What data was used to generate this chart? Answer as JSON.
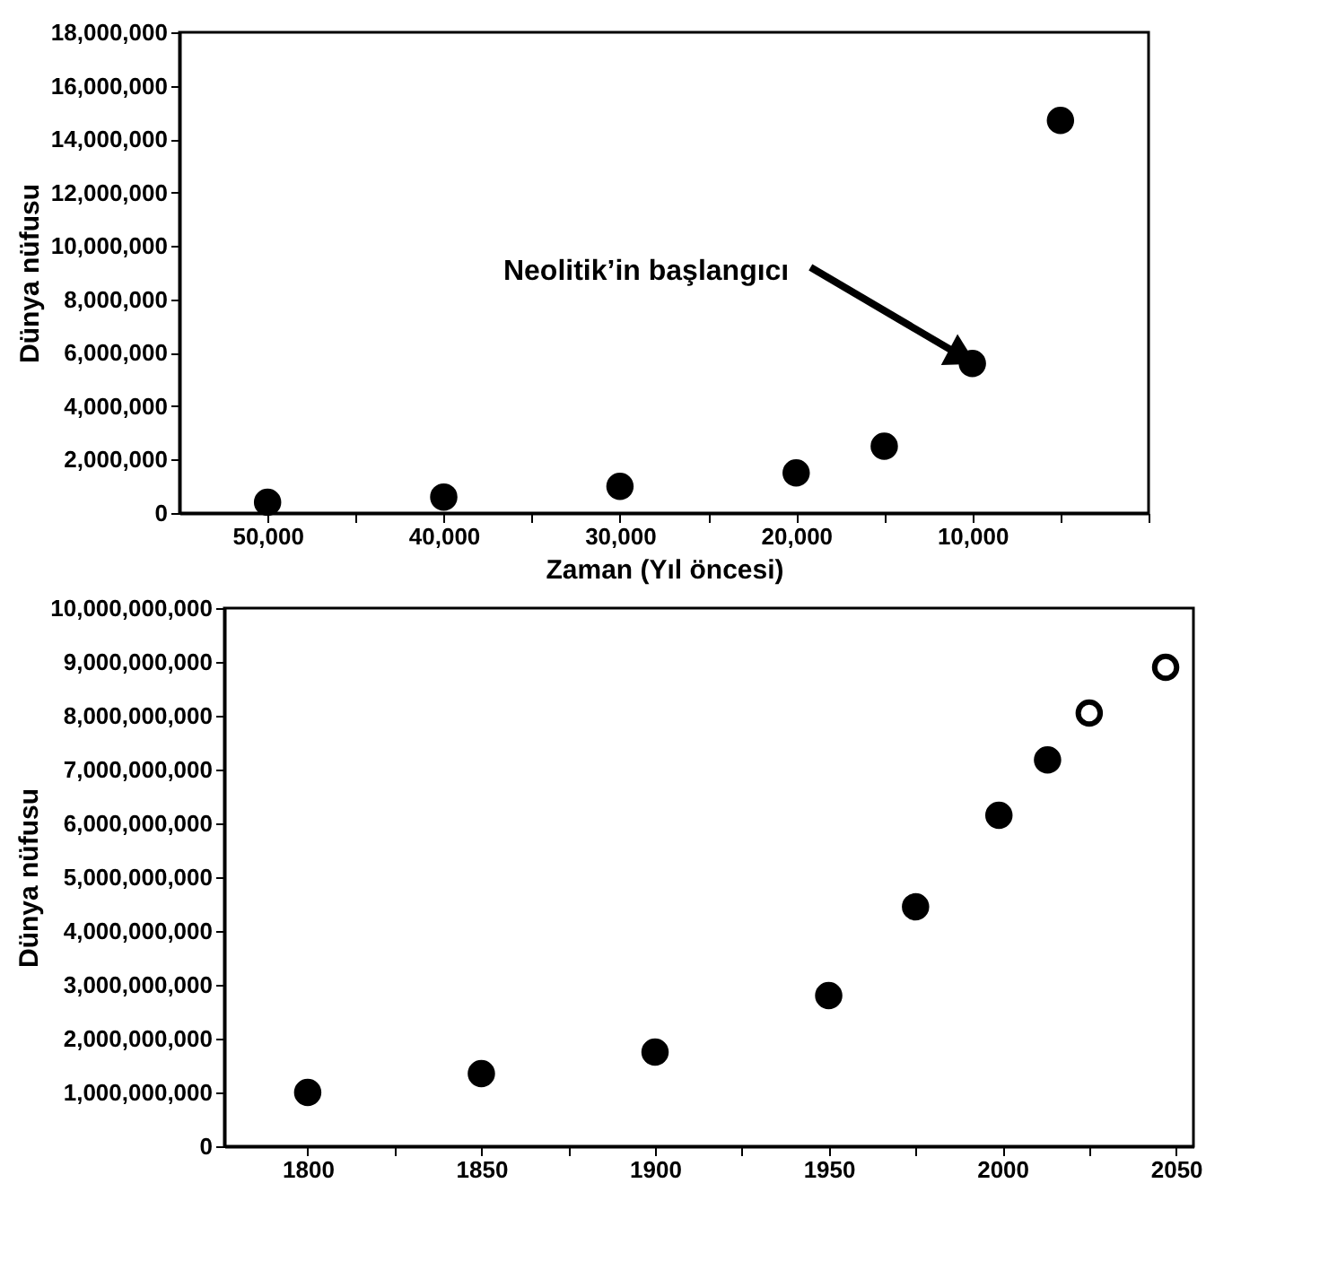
{
  "chart_data": [
    {
      "type": "scatter",
      "xlabel": "Zaman (Yıl öncesi)",
      "ylabel": "Dünya nüfusu",
      "marker": "circle",
      "grid": false,
      "x": [
        50000,
        40000,
        30000,
        20000,
        15000,
        10000,
        5000
      ],
      "series": [
        {
          "color": "#000000",
          "values": [
            400000,
            600000,
            1000000,
            1500000,
            2500000,
            5600000,
            14700000
          ]
        }
      ],
      "xlim": [
        55000,
        0
      ],
      "xticks": [
        {
          "value": 50000,
          "label": "50,000"
        },
        {
          "value": 45000,
          "label": null
        },
        {
          "value": 40000,
          "label": "40,000"
        },
        {
          "value": 35000,
          "label": null
        },
        {
          "value": 30000,
          "label": "30,000"
        },
        {
          "value": 25000,
          "label": null
        },
        {
          "value": 20000,
          "label": "20,000"
        },
        {
          "value": 15000,
          "label": null
        },
        {
          "value": 10000,
          "label": "10,000"
        },
        {
          "value": 5000,
          "label": null
        },
        {
          "value": 0,
          "label": null
        }
      ],
      "ylim": [
        0,
        18000000
      ],
      "yticks": [
        0,
        {
          "value": 2000000,
          "label": "2,000,000"
        },
        {
          "value": 4000000,
          "label": "4,000,000"
        },
        {
          "value": 6000000,
          "label": "6,000,000"
        },
        {
          "value": 8000000,
          "label": "8,000,000"
        },
        {
          "value": 10000000,
          "label": "10,000,000"
        },
        {
          "value": 12000000,
          "label": "12,000,000"
        },
        {
          "value": 14000000,
          "label": "14,000,000"
        },
        {
          "value": 16000000,
          "label": "16,000,000"
        },
        {
          "value": 18000000,
          "label": "18,000,000"
        }
      ],
      "annotations": [
        {
          "text": "Neolitik’in başlangıcı",
          "x": 10000,
          "y": 5600000
        }
      ]
    },
    {
      "type": "scatter",
      "ylabel": "Dünya nüfusu",
      "marker": "circle",
      "grid": false,
      "series": [
        {
          "color": "#000000",
          "x": [
            1800,
            1850,
            1900,
            1950,
            1975,
            1999,
            2013
          ],
          "values": [
            1000000000,
            1350000000,
            1750000000,
            2800000000,
            4450000000,
            6150000000,
            7180000000
          ]
        },
        {
          "color": "#ffffff",
          "x": [
            2025,
            2047
          ],
          "values": [
            8050000000,
            8900000000
          ]
        }
      ],
      "xlim": [
        1776,
        2055
      ],
      "xticks": [
        1800,
        {
          "value": 1825,
          "label": null
        },
        1850,
        {
          "value": 1875,
          "label": null
        },
        1900,
        {
          "value": 1925,
          "label": null
        },
        1950,
        {
          "value": 1975,
          "label": null
        },
        2000,
        {
          "value": 2025,
          "label": null
        },
        2050
      ],
      "ylim": [
        0,
        10000000000
      ],
      "yticks": [
        0,
        {
          "value": 1000000000,
          "label": "1,000,000,000"
        },
        {
          "value": 2000000000,
          "label": "2,000,000,000"
        },
        {
          "value": 3000000000,
          "label": "3,000,000,000"
        },
        {
          "value": 4000000000,
          "label": "4,000,000,000"
        },
        {
          "value": 5000000000,
          "label": "5,000,000,000"
        },
        {
          "value": 6000000000,
          "label": "6,000,000,000"
        },
        {
          "value": 7000000000,
          "label": "7,000,000,000"
        },
        {
          "value": 8000000000,
          "label": "8,000,000,000"
        },
        {
          "value": 9000000000,
          "label": "9,000,000,000"
        },
        {
          "value": 10000000000,
          "label": "10,000,000,000"
        }
      ]
    }
  ]
}
